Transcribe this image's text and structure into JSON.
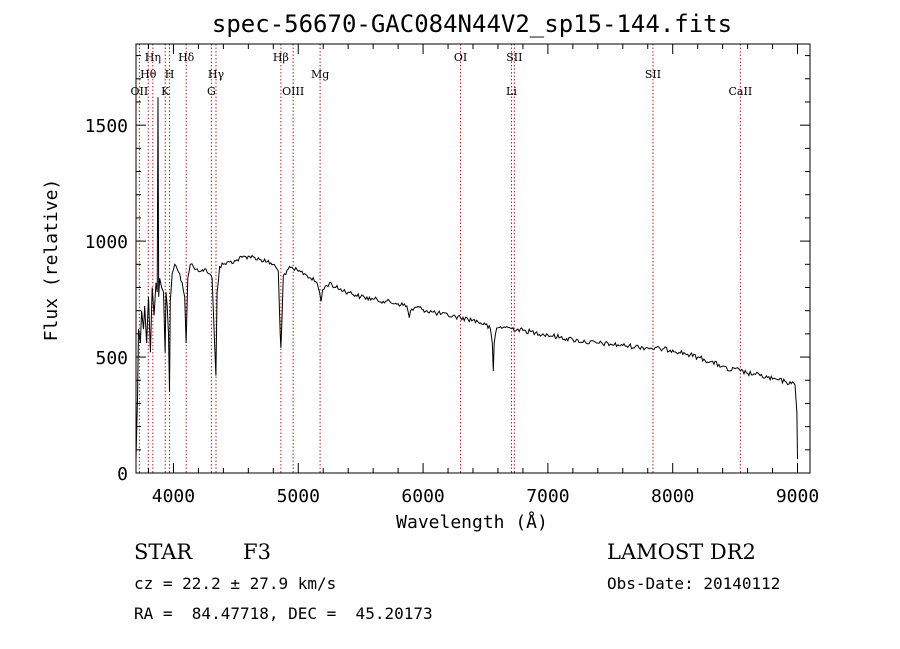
{
  "chart_data": {
    "type": "line",
    "title": "spec-56670-GAC084N44V2_sp15-144.fits",
    "xlabel": "Wavelength (Å)",
    "ylabel": "Flux (relative)",
    "xlim": [
      3700,
      9100
    ],
    "ylim": [
      0,
      1850
    ],
    "xticks": [
      {
        "value": 4000,
        "label": "4000"
      },
      {
        "value": 5000,
        "label": "5000"
      },
      {
        "value": 6000,
        "label": "6000"
      },
      {
        "value": 7000,
        "label": "7000"
      },
      {
        "value": 8000,
        "label": "8000"
      },
      {
        "value": 9000,
        "label": "9000"
      }
    ],
    "yticks": [
      {
        "value": 0,
        "label": "0"
      },
      {
        "value": 500,
        "label": "500"
      },
      {
        "value": 1000,
        "label": "1000"
      },
      {
        "value": 1500,
        "label": "1500"
      }
    ],
    "line_color": "#000000",
    "marker_color": "#b22222",
    "series": [
      {
        "x": [
          3700,
          3712,
          3720,
          3735,
          3745,
          3760,
          3770,
          3785,
          3800,
          3815,
          3830,
          3845,
          3860,
          3870,
          3876,
          3882,
          3890,
          3905,
          3920,
          3933,
          3940,
          3950,
          3960,
          3968,
          3975,
          3990,
          4010,
          4030,
          4050,
          4070,
          4090,
          4101,
          4115,
          4135,
          4160,
          4190,
          4220,
          4250,
          4280,
          4310,
          4330,
          4340,
          4350,
          4370,
          4400,
          4450,
          4500,
          4550,
          4600,
          4650,
          4700,
          4750,
          4800,
          4840,
          4855,
          4861,
          4868,
          4880,
          4920,
          4960,
          5000,
          5050,
          5100,
          5150,
          5170,
          5183,
          5195,
          5250,
          5300,
          5400,
          5500,
          5600,
          5700,
          5800,
          5870,
          5890,
          5900,
          5950,
          6000,
          6100,
          6200,
          6300,
          6400,
          6500,
          6540,
          6555,
          6563,
          6570,
          6590,
          6650,
          6700,
          6800,
          6900,
          7000,
          7100,
          7200,
          7300,
          7400,
          7500,
          7600,
          7700,
          7800,
          7900,
          8000,
          8100,
          8200,
          8300,
          8400,
          8450,
          8500,
          8542,
          8600,
          8662,
          8700,
          8800,
          8900,
          8950,
          8980,
          8995,
          9000
        ],
        "y": [
          60,
          320,
          620,
          560,
          700,
          620,
          720,
          560,
          760,
          520,
          800,
          680,
          820,
          780,
          1620,
          760,
          840,
          800,
          780,
          520,
          780,
          720,
          600,
          350,
          740,
          860,
          900,
          880,
          860,
          820,
          760,
          560,
          840,
          900,
          890,
          880,
          870,
          880,
          860,
          840,
          560,
          420,
          780,
          890,
          900,
          910,
          915,
          930,
          935,
          930,
          920,
          910,
          900,
          870,
          600,
          540,
          640,
          850,
          880,
          880,
          870,
          860,
          840,
          820,
          780,
          740,
          790,
          820,
          800,
          780,
          760,
          750,
          740,
          730,
          720,
          670,
          700,
          715,
          705,
          690,
          680,
          670,
          660,
          640,
          620,
          560,
          440,
          560,
          625,
          630,
          625,
          615,
          605,
          595,
          585,
          575,
          565,
          560,
          555,
          550,
          545,
          540,
          535,
          530,
          515,
          500,
          480,
          460,
          440,
          450,
          440,
          430,
          425,
          420,
          405,
          395,
          385,
          380,
          260,
          60
        ]
      }
    ],
    "lines": [
      {
        "wl": 3727,
        "label": "OII",
        "row": 3
      },
      {
        "wl": 3798,
        "label": "Hθ",
        "row": 2
      },
      {
        "wl": 3835,
        "label": "Hη",
        "row": 1
      },
      {
        "wl": 3934,
        "label": "K",
        "row": 3
      },
      {
        "wl": 3969,
        "label": "H",
        "row": 2
      },
      {
        "wl": 4102,
        "label": "Hδ",
        "row": 1
      },
      {
        "wl": 4304,
        "label": "G",
        "row": 3
      },
      {
        "wl": 4341,
        "label": "Hγ",
        "row": 2
      },
      {
        "wl": 4861,
        "label": "Hβ",
        "row": 1
      },
      {
        "wl": 4959,
        "label": "OIII",
        "row": 3
      },
      {
        "wl": 5175,
        "label": "Mg",
        "row": 2
      },
      {
        "wl": 6300,
        "label": "OI",
        "row": 1
      },
      {
        "wl": 6708,
        "label": "Li",
        "row": 3
      },
      {
        "wl": 6731,
        "label": "SII",
        "row": 1
      },
      {
        "wl": 7842,
        "label": "SII",
        "row": 2
      },
      {
        "wl": 8542,
        "label": "CaII",
        "row": 3
      }
    ]
  },
  "info": {
    "object_class": "STAR",
    "subclass": "F3",
    "survey": "LAMOST DR2",
    "cz_text": "cz = 22.2 ± 27.9 km/s",
    "obs_date_text": "Obs-Date: 20140112",
    "coords_text": "RA =  84.47718, DEC =  45.20173"
  }
}
